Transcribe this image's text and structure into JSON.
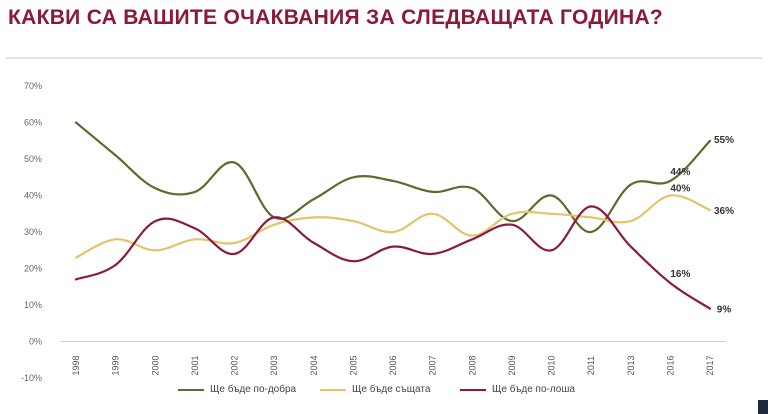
{
  "header": {
    "title": "КАКВИ СА ВАШИТЕ ОЧАКВАНИЯ ЗА СЛЕДВАЩАТА ГОДИНА?"
  },
  "colors": {
    "title": "#8a1a35",
    "better": "#5c6b2e",
    "same": "#e3c46a",
    "worse": "#8b1a3c"
  },
  "chart_data": {
    "type": "line",
    "title": "",
    "xlabel": "",
    "ylabel": "",
    "ylim": [
      -10,
      70
    ],
    "yticks": [
      "-10%",
      "0%",
      "10%",
      "20%",
      "30%",
      "40%",
      "50%",
      "60%",
      "70%"
    ],
    "y_tick_values": [
      -10,
      0,
      10,
      20,
      30,
      40,
      50,
      60,
      70
    ],
    "categories": [
      "1998",
      "1999",
      "2000",
      "2001",
      "2002",
      "2003",
      "2004",
      "2005",
      "2006",
      "2007",
      "2008",
      "2009",
      "2010",
      "2011",
      "2013",
      "2016",
      "2017"
    ],
    "grid": false,
    "legend_position": "bottom",
    "series": [
      {
        "name": "Ще бъде по-добра",
        "color_key": "better",
        "values": [
          60,
          51,
          42,
          41,
          49,
          34,
          39,
          45,
          44,
          41,
          42,
          33,
          40,
          30,
          43,
          44,
          55
        ]
      },
      {
        "name": "Ще бъде същата",
        "color_key": "same",
        "values": [
          23,
          28,
          25,
          28,
          27,
          32,
          34,
          33,
          30,
          35,
          29,
          35,
          35,
          34,
          33,
          40,
          36
        ]
      },
      {
        "name": "Ще бъде по-лоша",
        "color_key": "worse",
        "values": [
          17,
          21,
          33,
          31,
          24,
          34,
          27,
          22,
          26,
          24,
          28,
          32,
          25,
          37,
          26,
          16,
          9
        ]
      }
    ],
    "data_labels": [
      {
        "text": "55%",
        "series": 0,
        "index": 16
      },
      {
        "text": "44%",
        "series": 0,
        "index": 15
      },
      {
        "text": "40%",
        "series": 1,
        "index": 15
      },
      {
        "text": "36%",
        "series": 1,
        "index": 16
      },
      {
        "text": "16%",
        "series": 2,
        "index": 15
      },
      {
        "text": "9%",
        "series": 2,
        "index": 16
      }
    ]
  }
}
